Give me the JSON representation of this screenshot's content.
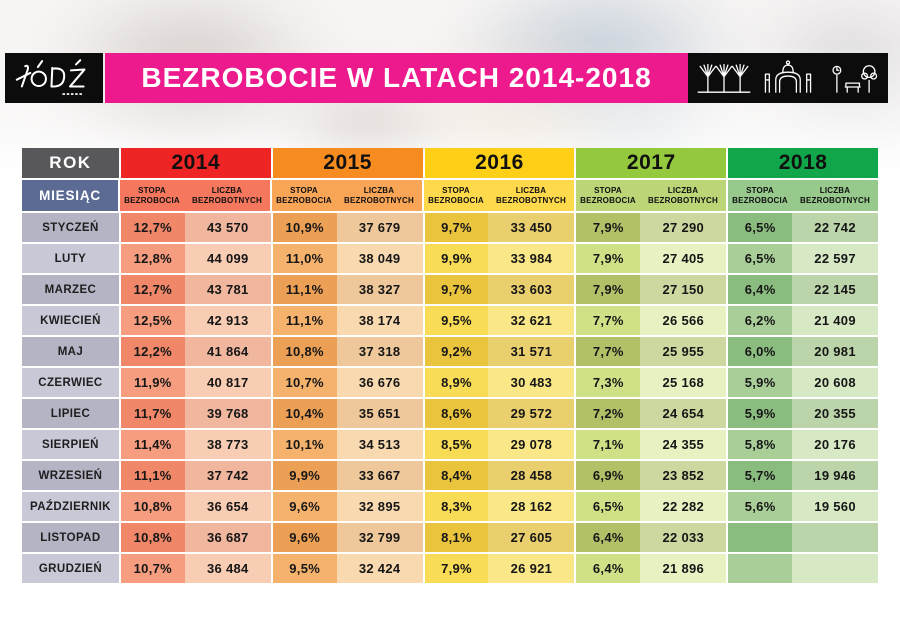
{
  "logo": {
    "city": "ŁÓDŹ"
  },
  "header": {
    "title": "BEZROBOCIE W LATACH 2014-2018",
    "accent_color": "#ec1a8d",
    "icons": [
      "viaduct-icon",
      "gate-icon",
      "park-icon"
    ]
  },
  "table": {
    "rok_label": "ROK",
    "miesiac_label": "MIESIĄC",
    "metric_headers": [
      [
        "STOPA",
        "BEZROBOCIA"
      ],
      [
        "LICZBA",
        "BEZROBOTNYCH"
      ]
    ],
    "colors": {
      "rok_bg": "#58585a",
      "miesiac_bg": "#5b6b94",
      "month_col": [
        "#b4b4c5",
        "#c8c8d7"
      ],
      "years": [
        {
          "header": "#ee2524",
          "sub": "#f5785e",
          "stopa": [
            "#ef8768",
            "#f69d7f"
          ],
          "liczba": [
            "#f0b69e",
            "#f9ccb4"
          ]
        },
        {
          "header": "#f68b1f",
          "sub": "#f9a557",
          "stopa": [
            "#eba055",
            "#f5b26d"
          ],
          "liczba": [
            "#eec89b",
            "#f9dab0"
          ]
        },
        {
          "header": "#fdd017",
          "sub": "#fdd94b",
          "stopa": [
            "#ebc43e",
            "#f8dc55"
          ],
          "liczba": [
            "#eacf6e",
            "#fae888"
          ]
        },
        {
          "header": "#94c93d",
          "sub": "#bcd577",
          "stopa": [
            "#b2c168",
            "#cfe187"
          ],
          "liczba": [
            "#ccd89f",
            "#e7f2c3"
          ]
        },
        {
          "header": "#12a64b",
          "sub": "#97c98c",
          "stopa": [
            "#8bbc7f",
            "#a9ce98"
          ],
          "liczba": [
            "#bbd4a9",
            "#d6e8c4"
          ]
        }
      ]
    }
  },
  "chart_data": {
    "type": "table",
    "title": "BEZROBOCIE W LATACH 2014-2018",
    "years": [
      "2014",
      "2015",
      "2016",
      "2017",
      "2018"
    ],
    "metrics": [
      "STOPA BEZROBOCIA",
      "LICZBA BEZROBOTNYCH"
    ],
    "months": [
      "STYCZEŃ",
      "LUTY",
      "MARZEC",
      "KWIECIEŃ",
      "MAJ",
      "CZERWIEC",
      "LIPIEC",
      "SIERPIEŃ",
      "WRZESIEŃ",
      "PAŹDZIERNIK",
      "LISTOPAD",
      "GRUDZIEŃ"
    ],
    "rows": [
      {
        "month": "STYCZEŃ",
        "cells": [
          [
            "12,7%",
            "43 570"
          ],
          [
            "10,9%",
            "37 679"
          ],
          [
            "9,7%",
            "33 450"
          ],
          [
            "7,9%",
            "27 290"
          ],
          [
            "6,5%",
            "22 742"
          ]
        ]
      },
      {
        "month": "LUTY",
        "cells": [
          [
            "12,8%",
            "44 099"
          ],
          [
            "11,0%",
            "38 049"
          ],
          [
            "9,9%",
            "33 984"
          ],
          [
            "7,9%",
            "27 405"
          ],
          [
            "6,5%",
            "22 597"
          ]
        ]
      },
      {
        "month": "MARZEC",
        "cells": [
          [
            "12,7%",
            "43 781"
          ],
          [
            "11,1%",
            "38 327"
          ],
          [
            "9,7%",
            "33 603"
          ],
          [
            "7,9%",
            "27 150"
          ],
          [
            "6,4%",
            "22 145"
          ]
        ]
      },
      {
        "month": "KWIECIEŃ",
        "cells": [
          [
            "12,5%",
            "42 913"
          ],
          [
            "11,1%",
            "38 174"
          ],
          [
            "9,5%",
            "32 621"
          ],
          [
            "7,7%",
            "26 566"
          ],
          [
            "6,2%",
            "21 409"
          ]
        ]
      },
      {
        "month": "MAJ",
        "cells": [
          [
            "12,2%",
            "41 864"
          ],
          [
            "10,8%",
            "37 318"
          ],
          [
            "9,2%",
            "31 571"
          ],
          [
            "7,7%",
            "25 955"
          ],
          [
            "6,0%",
            "20 981"
          ]
        ]
      },
      {
        "month": "CZERWIEC",
        "cells": [
          [
            "11,9%",
            "40 817"
          ],
          [
            "10,7%",
            "36 676"
          ],
          [
            "8,9%",
            "30 483"
          ],
          [
            "7,3%",
            "25 168"
          ],
          [
            "5,9%",
            "20 608"
          ]
        ]
      },
      {
        "month": "LIPIEC",
        "cells": [
          [
            "11,7%",
            "39 768"
          ],
          [
            "10,4%",
            "35 651"
          ],
          [
            "8,6%",
            "29 572"
          ],
          [
            "7,2%",
            "24 654"
          ],
          [
            "5,9%",
            "20 355"
          ]
        ]
      },
      {
        "month": "SIERPIEŃ",
        "cells": [
          [
            "11,4%",
            "38 773"
          ],
          [
            "10,1%",
            "34 513"
          ],
          [
            "8,5%",
            "29 078"
          ],
          [
            "7,1%",
            "24 355"
          ],
          [
            "5,8%",
            "20 176"
          ]
        ]
      },
      {
        "month": "WRZESIEŃ",
        "cells": [
          [
            "11,1%",
            "37 742"
          ],
          [
            "9,9%",
            "33 667"
          ],
          [
            "8,4%",
            "28 458"
          ],
          [
            "6,9%",
            "23 852"
          ],
          [
            "5,7%",
            "19 946"
          ]
        ]
      },
      {
        "month": "PAŹDZIERNIK",
        "cells": [
          [
            "10,8%",
            "36 654"
          ],
          [
            "9,6%",
            "32 895"
          ],
          [
            "8,3%",
            "28 162"
          ],
          [
            "6,5%",
            "22 282"
          ],
          [
            "5,6%",
            "19 560"
          ]
        ]
      },
      {
        "month": "LISTOPAD",
        "cells": [
          [
            "10,8%",
            "36 687"
          ],
          [
            "9,6%",
            "32 799"
          ],
          [
            "8,1%",
            "27 605"
          ],
          [
            "6,4%",
            "22 033"
          ],
          [
            "",
            ""
          ]
        ]
      },
      {
        "month": "GRUDZIEŃ",
        "cells": [
          [
            "10,7%",
            "36 484"
          ],
          [
            "9,5%",
            "32 424"
          ],
          [
            "7,9%",
            "26 921"
          ],
          [
            "6,4%",
            "21 896"
          ],
          [
            "",
            ""
          ]
        ]
      }
    ]
  }
}
